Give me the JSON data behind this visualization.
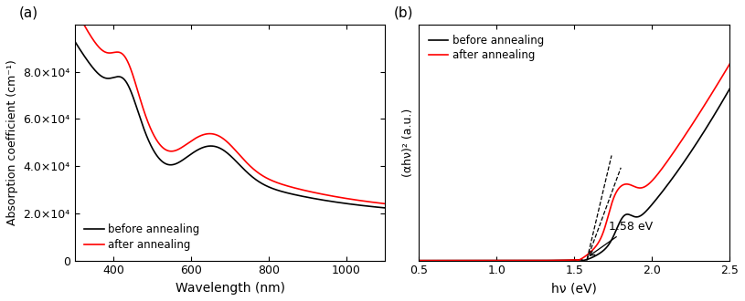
{
  "panel_a": {
    "xlabel": "Wavelength (nm)",
    "ylabel": "Absorption coefficient (cm⁻¹)",
    "xlim": [
      300,
      1100
    ],
    "ylim": [
      0,
      100000
    ],
    "yticks": [
      0,
      20000,
      40000,
      60000,
      80000
    ],
    "ytick_labels": [
      "0",
      "2.0×10⁴",
      "4.0×10⁴",
      "6.0×10⁴",
      "8.0×10⁴"
    ],
    "xticks": [
      400,
      600,
      800,
      1000
    ],
    "legend": [
      "before annealing",
      "after annealing"
    ],
    "line_colors": [
      "black",
      "red"
    ],
    "label": "(a)"
  },
  "panel_b": {
    "xlabel": "hν (eV)",
    "ylabel": "(αhν)² (a.u.)",
    "xlim": [
      0.5,
      2.5
    ],
    "xticks": [
      0.5,
      1.0,
      1.5,
      2.0,
      2.5
    ],
    "annotation": "1.58 eV",
    "bandgap_x": 1.58,
    "legend": [
      "before annealing",
      "after annealing"
    ],
    "line_colors": [
      "black",
      "red"
    ],
    "label": "(b)"
  },
  "fig_bg": "white"
}
